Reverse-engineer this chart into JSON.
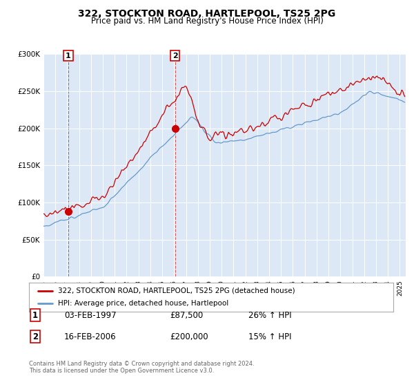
{
  "title": "322, STOCKTON ROAD, HARTLEPOOL, TS25 2PG",
  "subtitle": "Price paid vs. HM Land Registry's House Price Index (HPI)",
  "legend_line1": "322, STOCKTON ROAD, HARTLEPOOL, TS25 2PG (detached house)",
  "legend_line2": "HPI: Average price, detached house, Hartlepool",
  "transaction1_date": "03-FEB-1997",
  "transaction1_price": 87500,
  "transaction1_hpi": "26% ↑ HPI",
  "transaction2_date": "16-FEB-2006",
  "transaction2_price": 200000,
  "transaction2_hpi": "15% ↑ HPI",
  "footer": "Contains HM Land Registry data © Crown copyright and database right 2024.\nThis data is licensed under the Open Government Licence v3.0.",
  "hpi_color": "#6699cc",
  "price_color": "#cc0000",
  "shade_color": "#dce8f5",
  "plot_bg": "#dce8f5",
  "ylim": [
    0,
    300000
  ],
  "ylabel_ticks": [
    0,
    50000,
    100000,
    150000,
    200000,
    250000,
    300000
  ],
  "ylabel_labels": [
    "£0",
    "£50K",
    "£100K",
    "£150K",
    "£200K",
    "£250K",
    "£300K"
  ],
  "t1_year": 1997.083,
  "t2_year": 2006.083
}
